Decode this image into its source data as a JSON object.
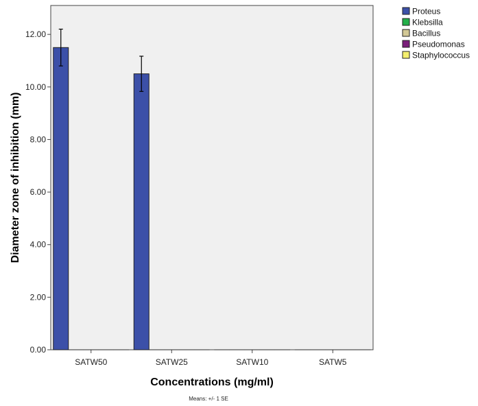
{
  "chart_data": {
    "type": "bar",
    "categories": [
      "SATW50",
      "SATW25",
      "SATW10",
      "SATW5"
    ],
    "series": [
      {
        "name": "Proteus",
        "color": "#3c50a8",
        "values": [
          11.5,
          10.5,
          0,
          0
        ],
        "se": [
          0.7,
          0.67,
          0,
          0
        ]
      },
      {
        "name": "Klebsilla",
        "color": "#23b04a",
        "values": [
          0,
          0,
          0,
          0
        ],
        "se": [
          0,
          0,
          0,
          0
        ]
      },
      {
        "name": "Bacillus",
        "color": "#d2c896",
        "values": [
          0,
          0,
          0,
          0
        ],
        "se": [
          0,
          0,
          0,
          0
        ]
      },
      {
        "name": "Pseudomonas",
        "color": "#7a1f7a",
        "values": [
          0,
          0,
          0,
          0
        ],
        "se": [
          0,
          0,
          0,
          0
        ]
      },
      {
        "name": "Staphylococcus",
        "color": "#f4ef6e",
        "values": [
          0,
          0,
          0,
          0
        ],
        "se": [
          0,
          0,
          0,
          0
        ]
      }
    ],
    "xlabel": "Concentrations (mg/ml)",
    "ylabel": "Diameter zone of inhibition (mm)",
    "ylim": [
      0,
      13.1
    ],
    "yticks": [
      "0.00",
      "2.00",
      "4.00",
      "6.00",
      "8.00",
      "10.00",
      "12.00"
    ],
    "error_bars": "+/- 1 SE",
    "legend_position": "top-right outside",
    "grid": false,
    "footnote": "Means: +/- 1 SE"
  }
}
